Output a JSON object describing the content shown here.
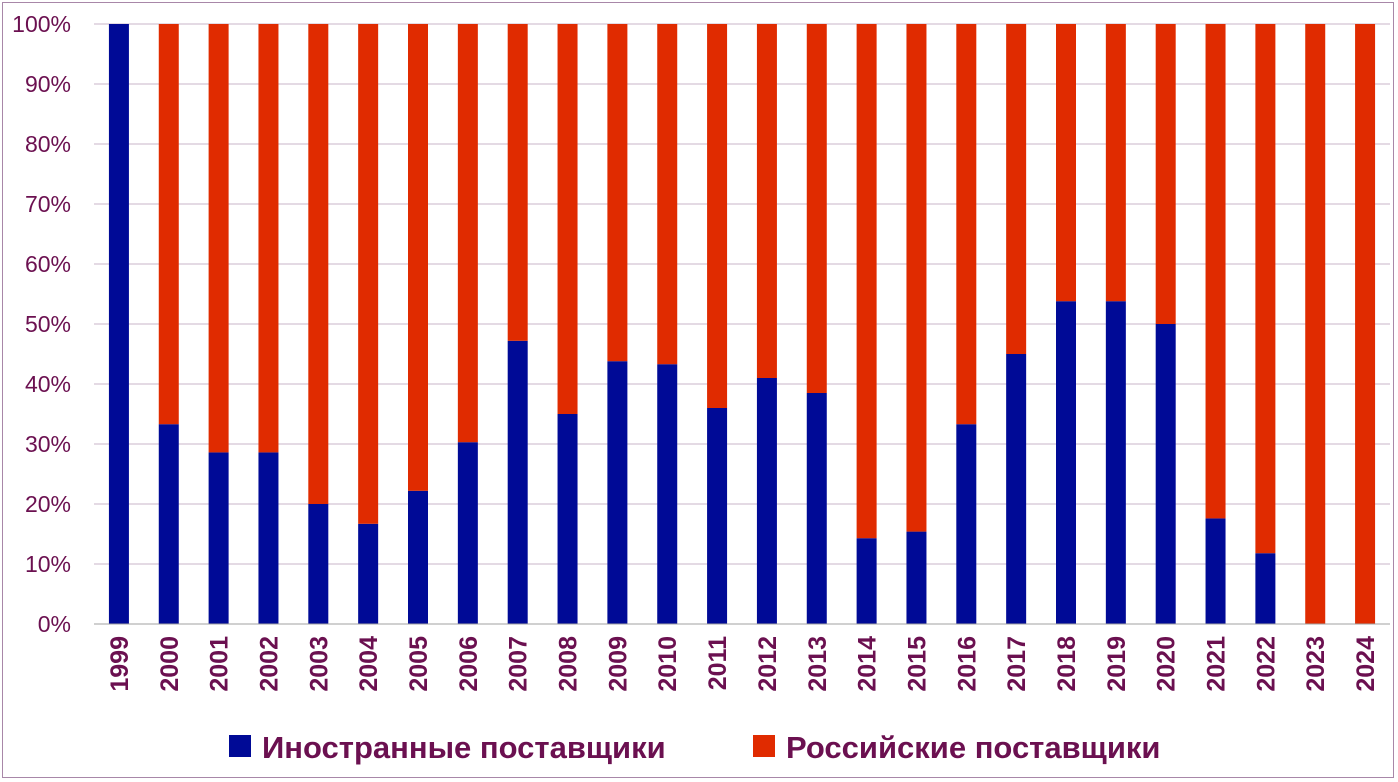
{
  "chart_data": {
    "type": "bar",
    "stacked": true,
    "title": "",
    "xlabel": "",
    "ylabel": "",
    "ylim": [
      0,
      100
    ],
    "y_ticks": [
      "0%",
      "10%",
      "20%",
      "30%",
      "40%",
      "50%",
      "60%",
      "70%",
      "80%",
      "90%",
      "100%"
    ],
    "y_tick_values": [
      0,
      10,
      20,
      30,
      40,
      50,
      60,
      70,
      80,
      90,
      100
    ],
    "grid": true,
    "legend_position": "bottom",
    "categories": [
      "1999",
      "2000",
      "2001",
      "2002",
      "2003",
      "2004",
      "2005",
      "2006",
      "2007",
      "2008",
      "2009",
      "2010",
      "2011",
      "2012",
      "2013",
      "2014",
      "2015",
      "2016",
      "2017",
      "2018",
      "2019",
      "2020",
      "2021",
      "2022",
      "2023",
      "2024"
    ],
    "series": [
      {
        "name": "Иностранные поставщики",
        "color": "#000a96",
        "values": [
          100,
          33.3,
          28.6,
          28.6,
          20.0,
          16.7,
          22.2,
          30.3,
          47.2,
          35.0,
          43.8,
          43.3,
          36.0,
          41.0,
          38.5,
          14.3,
          15.4,
          33.3,
          45.0,
          53.8,
          53.8,
          50.0,
          17.6,
          11.8,
          0,
          0
        ]
      },
      {
        "name": "Российские поставщики",
        "color": "#e02b00",
        "values": [
          0,
          66.7,
          71.4,
          71.4,
          80.0,
          83.3,
          77.8,
          69.7,
          52.8,
          65.0,
          56.2,
          56.7,
          64.0,
          59.0,
          61.5,
          85.7,
          84.6,
          66.7,
          55.0,
          46.2,
          46.2,
          50.0,
          82.4,
          88.2,
          100,
          100
        ]
      }
    ],
    "colors": {
      "tick_text": "#6b1050",
      "grid": "#c9b5c9",
      "axis": "#a0a0a0",
      "frame": "#a887a8"
    }
  }
}
